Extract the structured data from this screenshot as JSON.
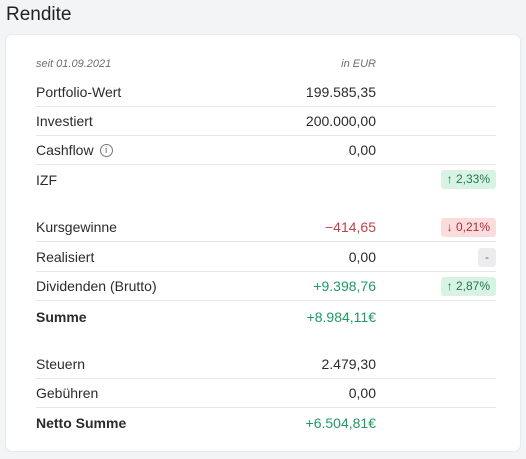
{
  "title": "Rendite",
  "header": {
    "date_label": "seit 01.09.2021",
    "currency_label": "in EUR"
  },
  "rows": {
    "portfolio_wert": {
      "label": "Portfolio-Wert",
      "value": "199.585,35"
    },
    "investiert": {
      "label": "Investiert",
      "value": "200.000,00"
    },
    "cashflow": {
      "label": "Cashflow",
      "value": "0,00",
      "info_icon": "i"
    },
    "izf": {
      "label": "IZF",
      "badge": "↑ 2,33%"
    },
    "kursgewinne": {
      "label": "Kursgewinne",
      "value": "−414,65",
      "badge": "↓ 0,21%"
    },
    "realisiert": {
      "label": "Realisiert",
      "value": "0,00",
      "badge": "-"
    },
    "dividenden": {
      "label": "Dividenden (Brutto)",
      "value": "+9.398,76",
      "badge": "↑ 2,87%"
    },
    "summe": {
      "label": "Summe",
      "value": "+8.984,11€"
    },
    "steuern": {
      "label": "Steuern",
      "value": "2.479,30"
    },
    "gebuehren": {
      "label": "Gebühren",
      "value": "0,00"
    },
    "netto_summe": {
      "label": "Netto Summe",
      "value": "+6.504,81€"
    }
  },
  "colors": {
    "positive": "#1e9b63",
    "negative": "#c2414b",
    "badge_up_bg": "#d8f3e4",
    "badge_down_bg": "#fbdcdd"
  }
}
